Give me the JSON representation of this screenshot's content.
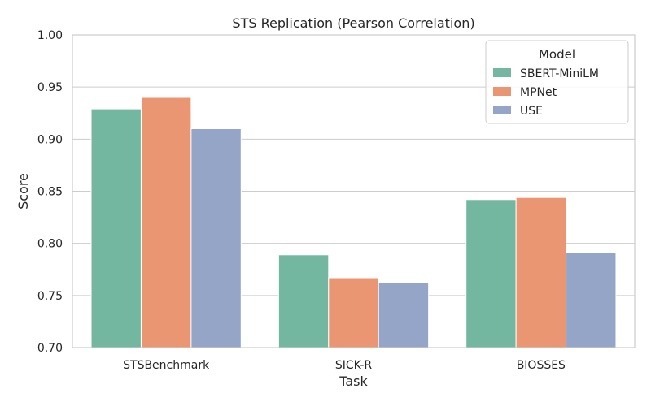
{
  "chart_data": {
    "type": "bar",
    "title": "STS Replication (Pearson Correlation)",
    "xlabel": "Task",
    "ylabel": "Score",
    "categories": [
      "STSBenchmark",
      "SICK-R",
      "BIOSSES"
    ],
    "series": [
      {
        "name": "SBERT-MiniLM",
        "values": [
          0.929,
          0.789,
          0.842
        ],
        "color": "#73b7a0"
      },
      {
        "name": "MPNet",
        "values": [
          0.94,
          0.767,
          0.844
        ],
        "color": "#ea9672"
      },
      {
        "name": "USE",
        "values": [
          0.91,
          0.762,
          0.791
        ],
        "color": "#95a5c7"
      }
    ],
    "ylim": [
      0.7,
      1.0
    ],
    "yticks": [
      0.7,
      0.75,
      0.8,
      0.85,
      0.9,
      0.95,
      1.0
    ],
    "ytick_labels": [
      "0.70",
      "0.75",
      "0.80",
      "0.85",
      "0.90",
      "0.95",
      "1.00"
    ],
    "grid": "y",
    "legend": {
      "title": "Model",
      "position": "top-right"
    }
  }
}
